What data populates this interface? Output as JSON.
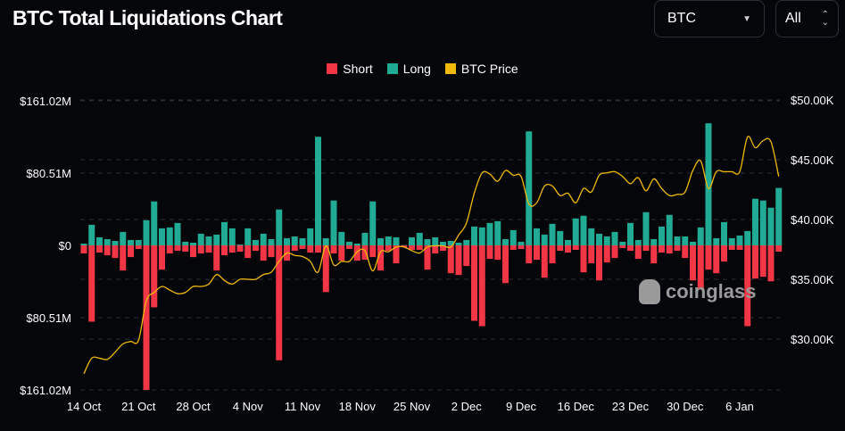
{
  "header": {
    "title": "BTC Total Liquidations Chart",
    "coin_select": "BTC",
    "range_select": "All"
  },
  "watermark": "coinglass",
  "chart_data": {
    "type": "bar",
    "title": "BTC Total Liquidations Chart",
    "legend": [
      {
        "name": "Short",
        "color": "#f23645"
      },
      {
        "name": "Long",
        "color": "#22ab94"
      },
      {
        "name": "BTC Price",
        "color": "#f0b90b"
      }
    ],
    "legend_position": "top-center",
    "left_axis": {
      "ticks": [
        "$161.02M",
        "$80.51M",
        "$0",
        "$80.51M",
        "$161.02M"
      ],
      "values": [
        161.02,
        80.51,
        0,
        -80.51,
        -161.02
      ],
      "range": [
        -161.02,
        161.02
      ],
      "unit": "M USD"
    },
    "right_axis": {
      "ticks": [
        "$50.00K",
        "$45.00K",
        "$40.00K",
        "$35.00K",
        "$30.00K"
      ],
      "values": [
        50,
        45,
        40,
        35,
        30
      ],
      "unit": "K USD"
    },
    "x_tick_labels": [
      "14 Oct",
      "21 Oct",
      "28 Oct",
      "4 Nov",
      "11 Nov",
      "18 Nov",
      "25 Nov",
      "2 Dec",
      "9 Dec",
      "16 Dec",
      "23 Dec",
      "30 Dec",
      "6 Jan"
    ],
    "x_start": "14 Oct",
    "days": 90,
    "long": [
      2,
      23,
      9,
      7,
      5,
      15,
      6,
      6,
      28,
      49,
      19,
      20,
      25,
      4,
      3,
      13,
      10,
      12,
      26,
      19,
      1,
      19,
      6,
      13,
      7,
      40,
      8,
      10,
      8,
      19,
      121,
      8,
      50,
      15,
      4,
      2,
      14,
      49,
      8,
      10,
      9,
      0.3,
      9,
      14,
      7,
      9,
      4,
      5,
      3,
      6,
      21,
      20,
      25,
      27,
      7,
      17,
      4,
      127,
      19,
      12,
      24,
      16,
      6,
      30,
      33,
      19,
      13,
      10,
      15,
      4,
      25,
      6,
      37,
      7,
      21,
      34,
      10,
      10,
      4,
      20,
      136,
      8,
      26,
      8,
      11,
      16,
      52,
      50,
      42,
      64
    ],
    "short": [
      9,
      85,
      8,
      11,
      14,
      28,
      13,
      4,
      161,
      69,
      27,
      9,
      6,
      7,
      13,
      9,
      8,
      28,
      11,
      8,
      7,
      14,
      6,
      17,
      13,
      128,
      17,
      6,
      4,
      8,
      8,
      52,
      9,
      17,
      4,
      17,
      16,
      13,
      28,
      6,
      20,
      2,
      5,
      5,
      27,
      9,
      6,
      31,
      33,
      23,
      84,
      90,
      15,
      16,
      42,
      5,
      4,
      20,
      16,
      36,
      20,
      6,
      8,
      5,
      30,
      20,
      39,
      19,
      14,
      3,
      6,
      15,
      6,
      20,
      8,
      9,
      6,
      14,
      39,
      49,
      27,
      31,
      18,
      5,
      5,
      90,
      37,
      35,
      40,
      7
    ],
    "price": [
      27.1,
      28.4,
      28.4,
      28.3,
      28.9,
      29.6,
      29.8,
      29.9,
      33.2,
      33.9,
      34.4,
      34.1,
      33.8,
      33.9,
      34.4,
      34.4,
      34.6,
      35.4,
      34.9,
      34.6,
      35.0,
      35.0,
      35.0,
      35.4,
      35.6,
      36.5,
      37.2,
      37.0,
      36.9,
      36.5,
      35.6,
      37.8,
      36.2,
      36.5,
      36.5,
      37.3,
      37.4,
      35.7,
      37.3,
      37.3,
      37.7,
      37.7,
      37.4,
      37.2,
      37.7,
      37.8,
      37.8,
      37.7,
      38.7,
      39.7,
      42.2,
      43.9,
      43.8,
      43.2,
      44.1,
      43.7,
      43.6,
      41.3,
      41.4,
      42.8,
      42.8,
      42.0,
      42.2,
      41.4,
      42.6,
      42.3,
      43.7,
      43.9,
      44.0,
      43.6,
      43.0,
      43.5,
      42.4,
      43.4,
      42.6,
      42.0,
      42.1,
      42.3,
      44.1,
      44.9,
      42.6,
      44.0,
      44.0,
      44.0,
      44.0,
      46.9,
      46.0,
      46.6,
      46.5,
      43.6
    ]
  }
}
